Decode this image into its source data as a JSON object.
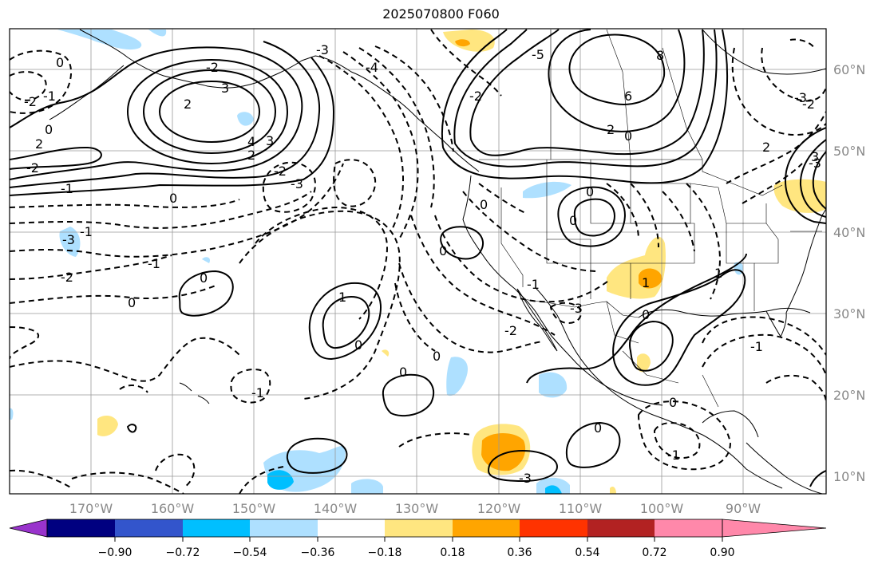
{
  "title": "2025070800 F060",
  "map": {
    "lon_labels": [
      "170°W",
      "160°W",
      "150°W",
      "140°W",
      "130°W",
      "120°W",
      "110°W",
      "100°W",
      "90°W"
    ],
    "lat_labels": [
      "60°N",
      "50°N",
      "40°N",
      "30°N",
      "20°N",
      "10°N"
    ],
    "contour_labels": [
      "0",
      "-2",
      "-1",
      "2",
      "0",
      "-2",
      "-2",
      "4",
      "3",
      "2",
      "-3",
      "-2",
      "3",
      "2",
      "-1",
      "0",
      "-3",
      "-4",
      "-2",
      "-5",
      "8",
      "6",
      "2",
      "0",
      "-3",
      "2",
      "-2",
      "-3",
      "0",
      "0",
      "0",
      "0",
      "-3",
      "-1",
      "-2",
      "0",
      "-1",
      "1",
      "0",
      "0",
      "0",
      "0",
      "-2",
      "-3",
      "-1",
      "1",
      "1",
      "0",
      "-1",
      "0",
      "-1",
      "0",
      "-3",
      "-1",
      "3"
    ]
  },
  "colorbar": {
    "tick_labels": [
      "−0.90",
      "−0.72",
      "−0.54",
      "−0.36",
      "−0.18",
      "0.18",
      "0.36",
      "0.54",
      "0.72",
      "0.90"
    ],
    "colors": [
      "#9933cc",
      "#000080",
      "#3355cc",
      "#00bfff",
      "#aee0ff",
      "#ffffff",
      "#ffe680",
      "#ffa500",
      "#ff3300",
      "#b22222",
      "#ff88aa"
    ]
  }
}
